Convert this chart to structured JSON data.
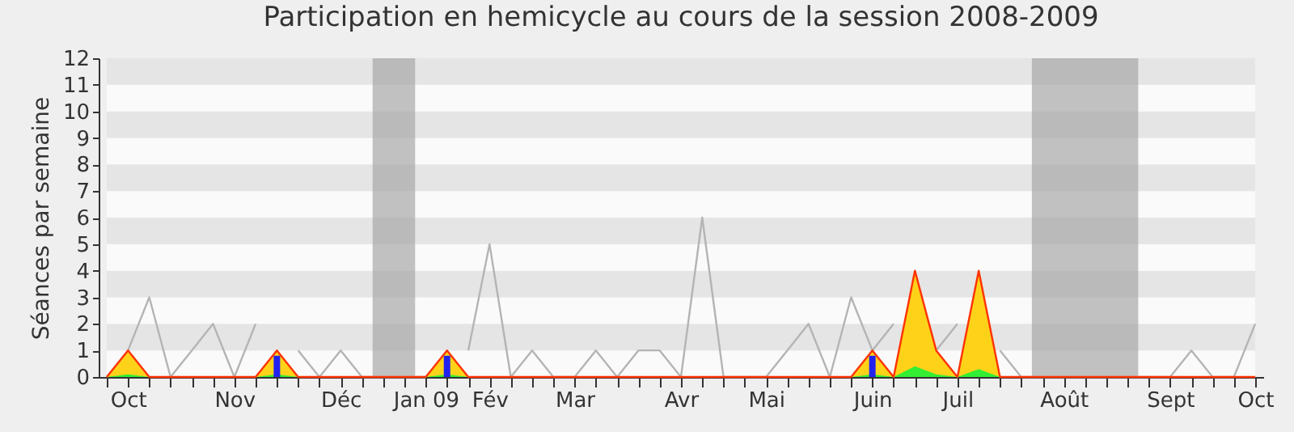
{
  "chart_data": {
    "type": "area",
    "title": "Participation en hemicycle au cours de la session 2008-2009",
    "ylabel": "Séances par semaine",
    "categories": [
      null,
      "Oct",
      null,
      null,
      null,
      null,
      "Nov",
      null,
      null,
      null,
      null,
      "Déc",
      null,
      null,
      null,
      "Jan 09",
      null,
      null,
      "Fév",
      null,
      null,
      null,
      "Mar",
      null,
      null,
      null,
      null,
      "Avr",
      null,
      null,
      null,
      "Mai",
      null,
      null,
      null,
      null,
      "Juin",
      null,
      null,
      null,
      "Juil",
      null,
      null,
      null,
      null,
      "Août",
      null,
      null,
      null,
      null,
      "Sept",
      null,
      null,
      null,
      "Oct"
    ],
    "series": [
      {
        "type": "line",
        "color": "#b4b4b4",
        "values": [
          0,
          1,
          3,
          0,
          1,
          2,
          0,
          2,
          null,
          1,
          0,
          1,
          0,
          0,
          0,
          0,
          null,
          1,
          5,
          0,
          1,
          0,
          0,
          1,
          0,
          1,
          1,
          0,
          6,
          0,
          0,
          0,
          1,
          2,
          0,
          3,
          1,
          2,
          null,
          1,
          2,
          null,
          1,
          0,
          0,
          0,
          0,
          0,
          0,
          0,
          0,
          1,
          0,
          0,
          2
        ]
      },
      {
        "color": "#ffd21a",
        "values": [
          0,
          1,
          0,
          0,
          0,
          0,
          0,
          0,
          1,
          0,
          0,
          0,
          0,
          0,
          0,
          0,
          1,
          0,
          0,
          0,
          0,
          0,
          0,
          0,
          0,
          0,
          0,
          0,
          0,
          0,
          0,
          0,
          0,
          0,
          0,
          0,
          1,
          0,
          4,
          1,
          0,
          4,
          0,
          0,
          0,
          0,
          0,
          0,
          0,
          0,
          0,
          0,
          0,
          0,
          0
        ]
      },
      {
        "color": "#33ee33",
        "values": [
          0,
          0.1,
          0,
          0,
          0,
          0,
          0,
          0,
          0.1,
          0,
          0,
          0,
          0,
          0,
          0,
          0,
          0.1,
          0,
          0,
          0,
          0,
          0,
          0,
          0,
          0,
          0,
          0,
          0,
          0,
          0,
          0,
          0,
          0,
          0,
          0,
          0,
          0.1,
          0,
          0.4,
          0.1,
          0,
          0.3,
          0,
          0,
          0,
          0,
          0,
          0,
          0,
          0,
          0,
          0,
          0,
          0,
          0
        ]
      },
      {
        "type": "bar",
        "color": "#2222ee",
        "values": [
          null,
          null,
          null,
          null,
          null,
          null,
          null,
          null,
          0.8,
          null,
          null,
          null,
          null,
          null,
          null,
          null,
          0.8,
          null,
          null,
          null,
          null,
          null,
          null,
          null,
          null,
          null,
          null,
          null,
          null,
          null,
          null,
          null,
          null,
          null,
          null,
          null,
          0.8,
          null,
          null,
          null,
          null,
          null,
          null,
          null,
          null,
          null,
          null,
          null,
          null,
          null,
          null,
          null,
          null,
          null,
          null
        ]
      }
    ],
    "ylim": [
      0,
      12
    ],
    "yticks": [
      0,
      1,
      2,
      3,
      4,
      5,
      6,
      7,
      8,
      9,
      10,
      11,
      12
    ]
  }
}
